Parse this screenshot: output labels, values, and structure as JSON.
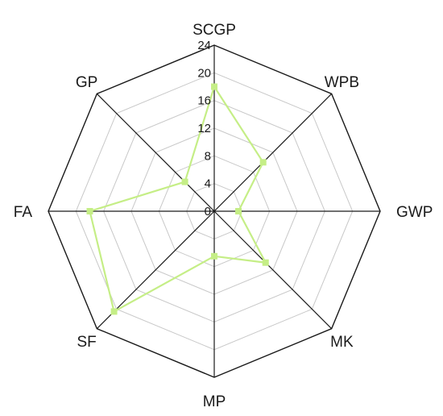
{
  "chart_data": {
    "type": "radar",
    "axes": [
      "SCGP",
      "WPB",
      "GWP",
      "MK",
      "MP",
      "SF",
      "FA",
      "GP"
    ],
    "ticks": [
      0,
      4,
      8,
      12,
      16,
      20,
      24
    ],
    "tick_labels": [
      "0",
      "4",
      "8",
      "12",
      "16",
      "20",
      "24"
    ],
    "rlim": [
      0,
      24
    ],
    "grid": true,
    "series": [
      {
        "values": [
          18,
          10,
          3.5,
          10.5,
          6.5,
          20.5,
          18,
          6
        ],
        "color": "#c5ee86"
      }
    ],
    "colors": {
      "grid": "#c8c8c8",
      "axis": "#1a1a1a",
      "text": "#1a1a1a"
    }
  }
}
